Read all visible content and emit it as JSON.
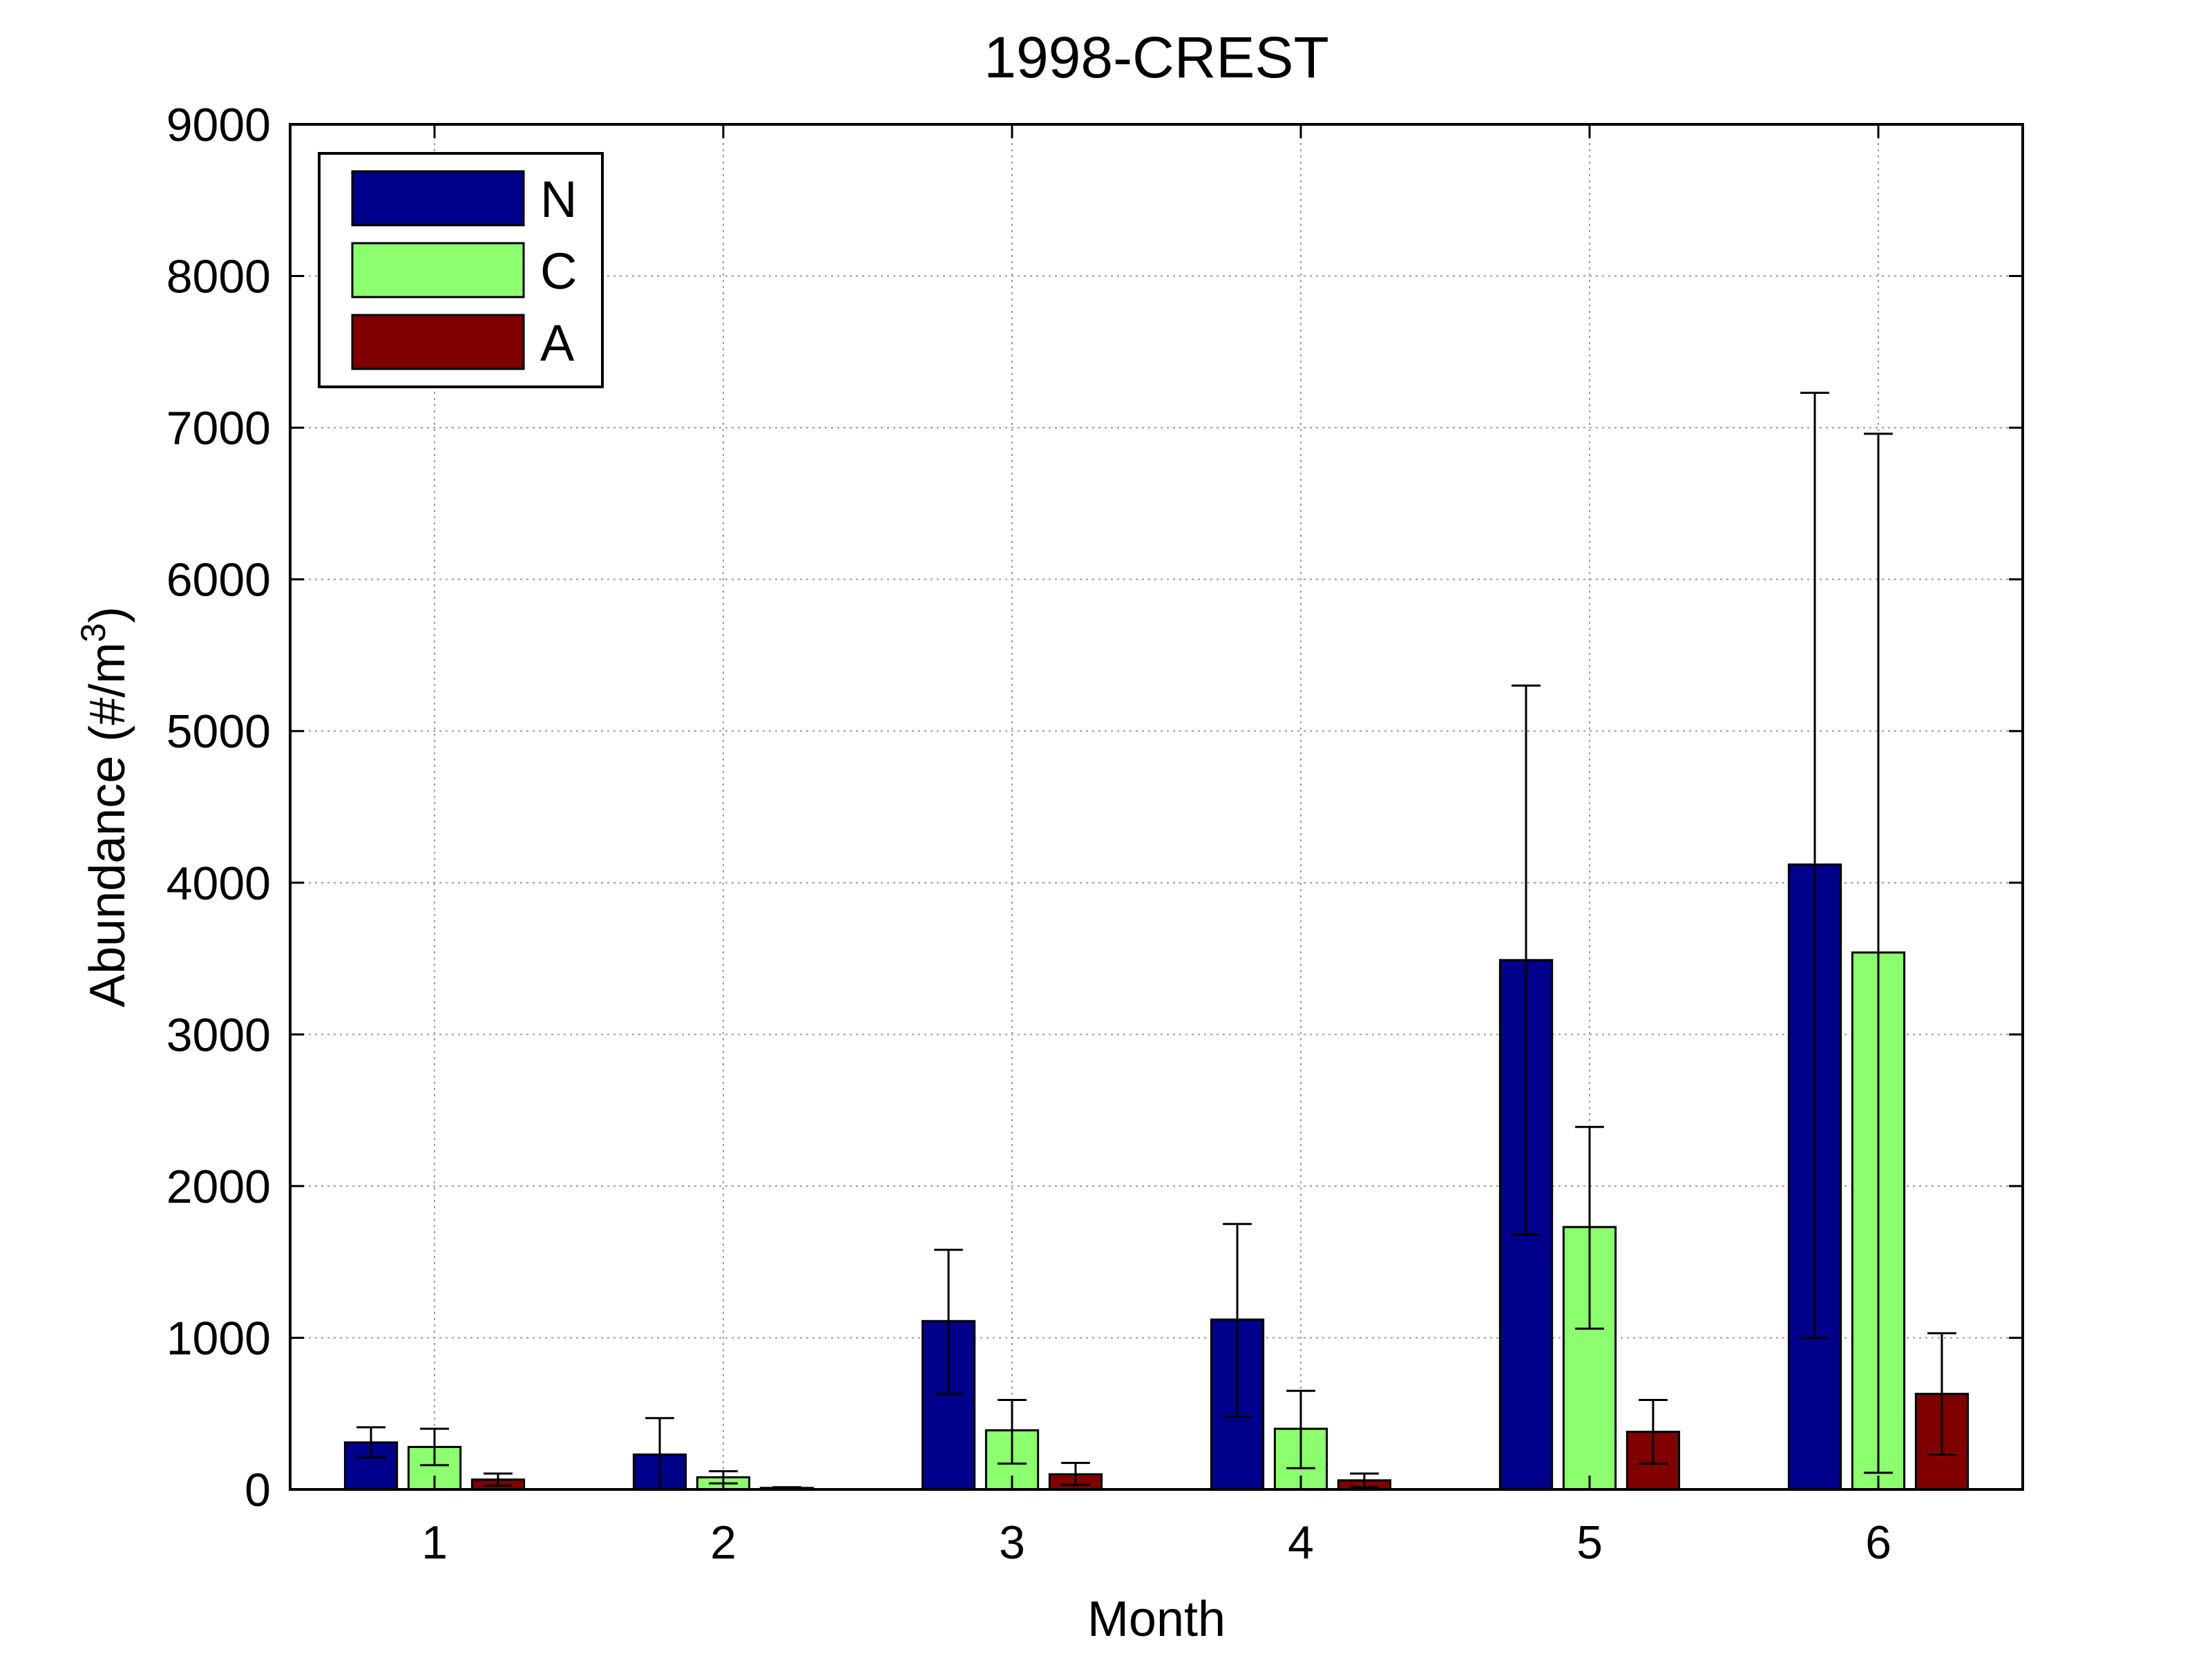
{
  "chart_data": {
    "type": "bar",
    "title": "1998-CREST",
    "xlabel": "Month",
    "ylabel": "Abundance (#/m",
    "ylabel_superscript": "3",
    "ylabel_suffix": ")",
    "categories": [
      "1",
      "2",
      "3",
      "4",
      "5",
      "6"
    ],
    "ylim": [
      0,
      9000
    ],
    "yticks": [
      "0",
      "1000",
      "2000",
      "3000",
      "4000",
      "5000",
      "6000",
      "7000",
      "8000",
      "9000"
    ],
    "grid": true,
    "grid_style": "dotted",
    "legend_position": "top-left",
    "series": [
      {
        "name": "N",
        "color": "#00008b",
        "values": [
          310,
          230,
          1110,
          1120,
          3490,
          4120
        ],
        "err_low": [
          210,
          0,
          630,
          480,
          1680,
          1000
        ],
        "err_high": [
          410,
          470,
          1580,
          1750,
          5300,
          7230
        ]
      },
      {
        "name": "C",
        "color": "#8cff6e",
        "values": [
          280,
          80,
          390,
          400,
          1730,
          3540
        ],
        "err_low": [
          160,
          40,
          170,
          140,
          1060,
          110
        ],
        "err_high": [
          400,
          120,
          590,
          650,
          2390,
          6960
        ]
      },
      {
        "name": "A",
        "color": "#800000",
        "values": [
          65,
          10,
          100,
          60,
          380,
          630
        ],
        "err_low": [
          25,
          0,
          30,
          15,
          170,
          230
        ],
        "err_high": [
          105,
          15,
          175,
          105,
          590,
          1030
        ]
      }
    ]
  }
}
